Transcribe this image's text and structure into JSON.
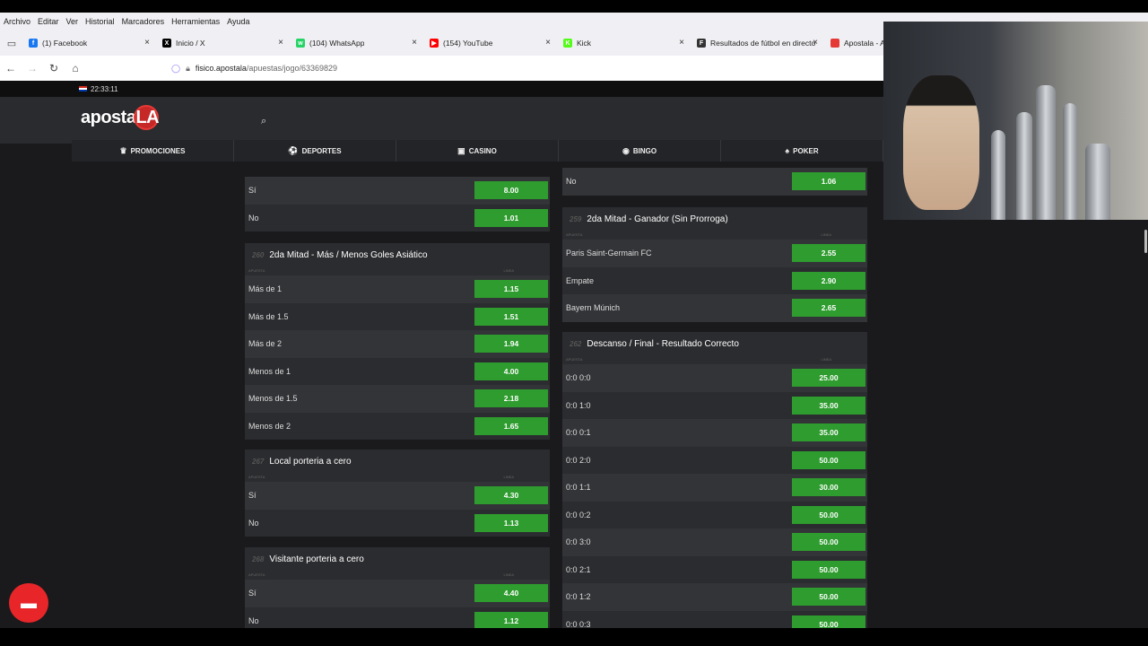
{
  "browser": {
    "menu": [
      "Archivo",
      "Editar",
      "Ver",
      "Historial",
      "Marcadores",
      "Herramientas",
      "Ayuda"
    ],
    "tabs": [
      {
        "label": "(1) Facebook",
        "color": "#1877f2",
        "glyph": "f"
      },
      {
        "label": "Inicio / X",
        "color": "#000000",
        "glyph": "X"
      },
      {
        "label": "(104) WhatsApp",
        "color": "#25d366",
        "glyph": "w"
      },
      {
        "label": "(154) YouTube",
        "color": "#ff0000",
        "glyph": "▶"
      },
      {
        "label": "Kick",
        "color": "#53fc18",
        "glyph": "K"
      },
      {
        "label": "Resultados de fútbol en directo",
        "color": "#333333",
        "glyph": "F"
      },
      {
        "label": "Apostala - Ap",
        "color": "#e53935",
        "glyph": ""
      }
    ],
    "url_host": "fisico.apostala",
    "url_rest": "/apuestas/jogo/63369829"
  },
  "site": {
    "time": "22:33:11",
    "logo": {
      "text": "aposta",
      "circ": "LA"
    },
    "nav": [
      {
        "label": "PROMOCIONES",
        "icon": "♛"
      },
      {
        "label": "DEPORTES",
        "icon": "⚽"
      },
      {
        "label": "CASINO",
        "icon": "▣"
      },
      {
        "label": "BINGO",
        "icon": "◉"
      },
      {
        "label": "POKER",
        "icon": "♠"
      }
    ],
    "sub_headers": {
      "left": "APUESTA",
      "right": "LINEA"
    }
  },
  "left_panels": [
    {
      "num": "",
      "title": "",
      "rows": [
        {
          "label": "Sí",
          "odd": "8.00"
        },
        {
          "label": "No",
          "odd": "1.01"
        }
      ]
    },
    {
      "num": "260",
      "title": "2da Mitad - Más / Menos Goles Asiático",
      "rows": [
        {
          "label": "Más de 1",
          "odd": "1.15"
        },
        {
          "label": "Más de 1.5",
          "odd": "1.51"
        },
        {
          "label": "Más de 2",
          "odd": "1.94"
        },
        {
          "label": "Menos de 1",
          "odd": "4.00"
        },
        {
          "label": "Menos de 1.5",
          "odd": "2.18"
        },
        {
          "label": "Menos de 2",
          "odd": "1.65"
        }
      ]
    },
    {
      "num": "267",
      "title": "Local porteria a cero",
      "rows": [
        {
          "label": "Sí",
          "odd": "4.30"
        },
        {
          "label": "No",
          "odd": "1.13"
        }
      ]
    },
    {
      "num": "268",
      "title": "Visitante porteria a cero",
      "rows": [
        {
          "label": "Sí",
          "odd": "4.40"
        },
        {
          "label": "No",
          "odd": "1.12"
        }
      ]
    }
  ],
  "right_panels": [
    {
      "num": "",
      "title": "",
      "rows": [
        {
          "label": "No",
          "odd": "1.06"
        }
      ]
    },
    {
      "num": "259",
      "title": "2da Mitad - Ganador (Sin Prorroga)",
      "rows": [
        {
          "label": "Paris Saint-Germain FC",
          "odd": "2.55"
        },
        {
          "label": "Empate",
          "odd": "2.90"
        },
        {
          "label": "Bayern Múnich",
          "odd": "2.65"
        }
      ]
    },
    {
      "num": "262",
      "title": "Descanso / Final - Resultado Correcto",
      "rows": [
        {
          "label": "0:0 0:0",
          "odd": "25.00"
        },
        {
          "label": "0:0 1:0",
          "odd": "35.00"
        },
        {
          "label": "0:0 0:1",
          "odd": "35.00"
        },
        {
          "label": "0:0 2:0",
          "odd": "50.00"
        },
        {
          "label": "0:0 1:1",
          "odd": "30.00"
        },
        {
          "label": "0:0 0:2",
          "odd": "50.00"
        },
        {
          "label": "0:0 3:0",
          "odd": "50.00"
        },
        {
          "label": "0:0 2:1",
          "odd": "50.00"
        },
        {
          "label": "0:0 1:2",
          "odd": "50.00"
        },
        {
          "label": "0:0 0:3",
          "odd": "50.00"
        }
      ]
    }
  ]
}
